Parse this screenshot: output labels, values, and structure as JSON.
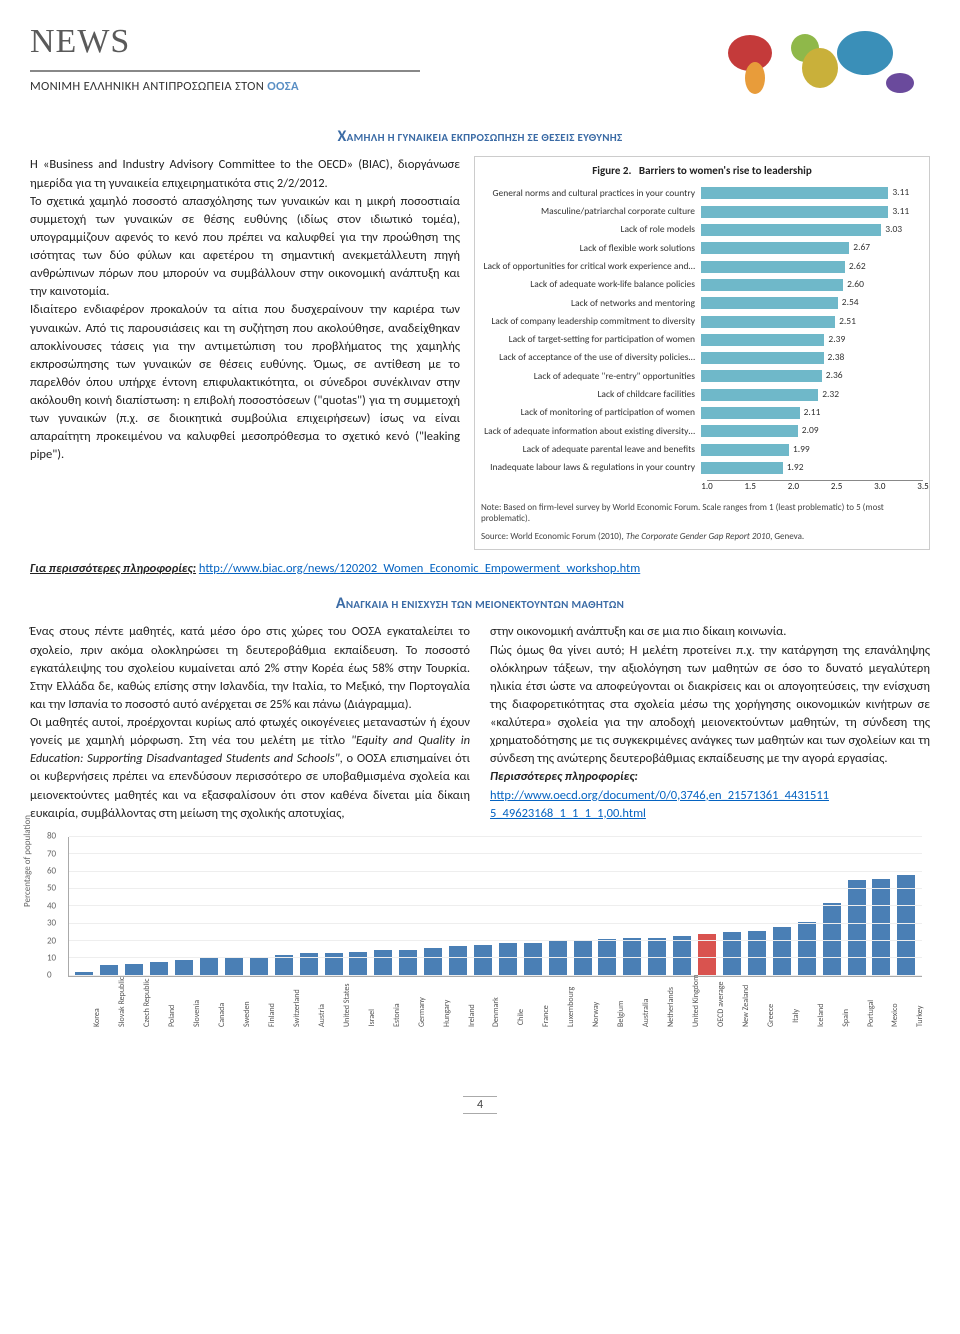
{
  "header": {
    "news_title": "NEWS",
    "subtitle_prefix": "ΜΟΝΙΜΗ ΕΛΛΗΝΙΚΗ ΑΝΤΙΠΡΟΣΩΠΕΙΑ ΣΤΟΝ ",
    "subtitle_accent": "ΟΟΣΑ"
  },
  "section1": {
    "heading_dropcap": "Χ",
    "heading_rest": "ΑΜΗΛΗ Η ΓΥΝΑΙΚΕΙΑ ΕΚΠΡΟΣΩΠΗΣΗ ΣΕ ΘΕΣΕΙΣ ΕΥΘΥΝΗΣ",
    "body_html": "Η «Business and Industry Advisory Committee to the OECD» (BIAC), διοργάνωσε ημερίδα για τη γυναικεία επιχειρηματικότα στις 2/2/2012.<br>Το σχετικά χαμηλό ποσοστό απασχόλησης των γυναικών και η μικρή ποσοστιαία συμμετοχή των γυναικών σε θέσης ευθύνης (ιδίως στον ιδιωτικό τομέα), υπογραμμίζουν αφενός το κενό που πρέπει να καλυφθεί για την προώθηση της ισότητας των δύο φύλων και αφετέρου τη σημαντική ανεκμετάλλευτη πηγή ανθρώπινων πόρων που μπορούν να συμβάλλουν στην οικονομική ανάπτυξη και την καινοτομία.<br>Ιδιαίτερο ενδιαφέρον προκαλούν τα αίτια που δυσχεραίνουν την καριέρα των γυναικών. Από τις παρουσιάσεις και τη συζήτηση που ακολούθησε, αναδείχθηκαν αποκλίνουσες τάσεις για την αντιμετώπιση του προβλήματος της χαμηλής εκπροσώπησης των γυναικών σε θέσεις ευθύνης. Όμως, σε αντίθεση με το παρελθόν όπου υπήρχε έντονη επιφυλακτικότητα, οι σύνεδροι συνέκλιναν στην ακόλουθη κοινή διαπίστωση: η επιβολή ποσοστόσεων (\"quotas\") για τη συμμετοχή των γυναικών (π.χ. σε διοικητικά συμβούλια επιχειρήσεων) ίσως να είναι απαραίτητη προκειμένου να καλυφθεί μεσοπρόθεσμα το σχετικό κενό (\"leaking pipe\").",
    "more_info_label": "Για περισσότερες πληροφορίες:",
    "more_info_link_text": "http://www.biac.org/news/120202_Women_Economic_Empowerment_workshop.htm"
  },
  "figure2": {
    "title_prefix": "Figure 2.",
    "title_rest": "Barriers to women's rise to leadership",
    "bar_color": "#6fb8c9",
    "x_min": 1.0,
    "x_max": 3.5,
    "ticks": [
      "1.0",
      "1.5",
      "2.0",
      "2.5",
      "3.0",
      "3.5"
    ],
    "bars": [
      {
        "label": "General norms and cultural practices in your country",
        "value": 3.11
      },
      {
        "label": "Masculine/patriarchal corporate culture",
        "value": 3.11
      },
      {
        "label": "Lack of role models",
        "value": 3.03
      },
      {
        "label": "Lack of flexible work solutions",
        "value": 2.67
      },
      {
        "label": "Lack of opportunities for critical work experience and…",
        "value": 2.62
      },
      {
        "label": "Lack of adequate work-life balance policies",
        "value": 2.6
      },
      {
        "label": "Lack of networks and mentoring",
        "value": 2.54
      },
      {
        "label": "Lack of company leadership commitment to diversity",
        "value": 2.51
      },
      {
        "label": "Lack of target-setting for participation of women",
        "value": 2.39
      },
      {
        "label": "Lack of acceptance of the use of diversity policies…",
        "value": 2.38
      },
      {
        "label": "Lack of adequate \"re-entry\" opportunities",
        "value": 2.36
      },
      {
        "label": "Lack of childcare facilities",
        "value": 2.32
      },
      {
        "label": "Lack of monitoring of participation of women",
        "value": 2.11
      },
      {
        "label": "Lack of adequate information about existing diversity…",
        "value": 2.09
      },
      {
        "label": "Lack of adequate parental leave and benefits",
        "value": 1.99
      },
      {
        "label": "Inadequate labour laws & regulations in your country",
        "value": 1.92
      }
    ],
    "note": "Note: Based on firm-level survey by World Economic Forum. Scale ranges from 1 (least problematic) to 5 (most problematic).",
    "source_prefix": "Source: World Economic Forum (2010), ",
    "source_italic": "The Corporate Gender Gap Report 2010",
    "source_suffix": ", Geneva."
  },
  "section2": {
    "heading_dropcap": "Α",
    "heading_rest": "ΝΑΓΚΑΙΑ Η ΕΝΙΣΧΥΣΗ ΤΩΝ ΜΕΙΟΝΕΚΤΟΥΝΤΩΝ ΜΑΘΗΤΩΝ",
    "col1_html": "Ένας στους πέντε μαθητές, κατά μέσο όρο στις χώρες του ΟΟΣΑ εγκαταλείπει το σχολείο, πριν ακόμα ολοκληρώσει τη δευτεροβάθμια εκπαίδευση. Το ποσοστό εγκατάλειψης του σχολείου κυμαίνεται από 2% στην Κορέα έως 58% στην Τουρκία. Στην Ελλάδα δε, καθώς επίσης στην Ισλανδία, την Ιταλία, το Μεξικό, την Πορτογαλία και την Ισπανία το ποσοστό αυτό ανέρχεται σε 25% και πάνω (Διάγραμμα).<br>Οι μαθητές αυτοί, προέρχονται κυρίως από φτωχές οικογένειες μεταναστών ή έχουν γονείς με χαμηλή μόρφωση. Στη νέα του μελέτη με τίτλο <i>\"Equity and Quality in Education: Supporting Disadvantaged Students and Schools\"</i>, ο ΟΟΣΑ επισημαίνει ότι οι κυβερνήσεις πρέπει να επενδύσουν περισσότερο σε υποβαθμισμένα σχολεία και μειονεκτούντες μαθητές και να εξασφαλίσουν ότι στον καθένα δίνεται μία δίκαιη ευκαιρία, συμβάλλοντας στη μείωση της σχολικής αποτυχίας,",
    "col2_html": "στην οικονομική ανάπτυξη και σε μια πιο δίκαιη κοινωνία.<br>Πώς όμως θα γίνει αυτό; Η μελέτη προτείνει π.χ. την κατάργηση της επανάληψης ολόκληρων τάξεων, την αξιολόγηση των μαθητών σε όσο το δυνατό μεγαλύτερη ηλικία έτσι ώστε να αποφεύγονται οι διακρίσεις και οι απογοητεύσεις, την ενίσχυση της διαφορετικότητας στα σχολεία μέσω της χορήγησης οικονομικών κινήτρων σε «καλύτερα» σχολεία για την αποδοχή μειονεκτούντων μαθητών, τη σύνδεση της χρηματοδότησης με τις συγκεκριμένες ανάγκες των μαθητών και των σχολείων και τη σύνδεση της ανώτερης δευτεροβάθμιας εκπαίδευσης με την αγορά εργασίας.<br><b><i>Περισσότερες πληροφορίες:</i></b><br><a href=\"#\">http://www.oecd.org/document/0/0,3746,en_21571361_4431511<br>5_49623168_1_1_1_1,00.html</a>"
  },
  "vchart": {
    "yaxis_label": "Percentage of population",
    "y_max": 80,
    "y_ticks": [
      0,
      10,
      20,
      30,
      40,
      50,
      60,
      70,
      80
    ],
    "bar_color": "#4a7fb5",
    "highlight_color": "#d9534f",
    "bars": [
      {
        "label": "Korea",
        "value": 2,
        "hl": false
      },
      {
        "label": "Slovak Republic",
        "value": 6,
        "hl": false
      },
      {
        "label": "Czech Republic",
        "value": 7,
        "hl": false
      },
      {
        "label": "Poland",
        "value": 8,
        "hl": false
      },
      {
        "label": "Slovenia",
        "value": 9,
        "hl": false
      },
      {
        "label": "Canada",
        "value": 10,
        "hl": false
      },
      {
        "label": "Sweden",
        "value": 10,
        "hl": false
      },
      {
        "label": "Finland",
        "value": 11,
        "hl": false
      },
      {
        "label": "Switzerland",
        "value": 12,
        "hl": false
      },
      {
        "label": "Austria",
        "value": 13,
        "hl": false
      },
      {
        "label": "United States",
        "value": 13,
        "hl": false
      },
      {
        "label": "Israel",
        "value": 14,
        "hl": false
      },
      {
        "label": "Estonia",
        "value": 15,
        "hl": false
      },
      {
        "label": "Germany",
        "value": 15,
        "hl": false
      },
      {
        "label": "Hungary",
        "value": 16,
        "hl": false
      },
      {
        "label": "Ireland",
        "value": 17,
        "hl": false
      },
      {
        "label": "Denmark",
        "value": 18,
        "hl": false
      },
      {
        "label": "Chile",
        "value": 19,
        "hl": false
      },
      {
        "label": "France",
        "value": 19,
        "hl": false
      },
      {
        "label": "Luxembourg",
        "value": 20,
        "hl": false
      },
      {
        "label": "Norway",
        "value": 20,
        "hl": false
      },
      {
        "label": "Belgium",
        "value": 21,
        "hl": false
      },
      {
        "label": "Australia",
        "value": 22,
        "hl": false
      },
      {
        "label": "Netherlands",
        "value": 22,
        "hl": false
      },
      {
        "label": "United Kingdom",
        "value": 23,
        "hl": false
      },
      {
        "label": "OECD average",
        "value": 24,
        "hl": true
      },
      {
        "label": "New Zealand",
        "value": 25,
        "hl": false
      },
      {
        "label": "Greece",
        "value": 26,
        "hl": false
      },
      {
        "label": "Italy",
        "value": 28,
        "hl": false
      },
      {
        "label": "Iceland",
        "value": 31,
        "hl": false
      },
      {
        "label": "Spain",
        "value": 42,
        "hl": false
      },
      {
        "label": "Portugal",
        "value": 55,
        "hl": false
      },
      {
        "label": "Mexico",
        "value": 56,
        "hl": false
      },
      {
        "label": "Turkey",
        "value": 58,
        "hl": false
      }
    ]
  },
  "page_number": "4"
}
